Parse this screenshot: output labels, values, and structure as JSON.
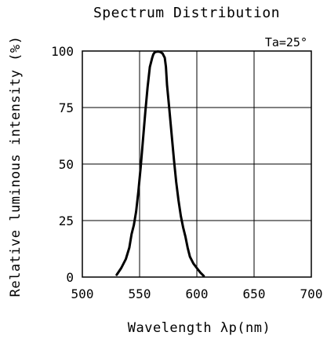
{
  "chart_data": {
    "type": "line",
    "title": "Spectrum Distribution",
    "annotation": "Ta=25°",
    "xlabel": "Wavelength λp(nm)",
    "ylabel": "Relative luminous intensity (%)",
    "xlim": [
      500,
      700
    ],
    "ylim": [
      0,
      100
    ],
    "x_ticks": [
      "500",
      "550",
      "600",
      "650",
      "700"
    ],
    "y_ticks": [
      "0",
      "25",
      "50",
      "75",
      "100"
    ],
    "grid": true,
    "series": [
      {
        "x": [
          530,
          534,
          538,
          541,
          543,
          545,
          547,
          549,
          551,
          553,
          555,
          557,
          559,
          561,
          562,
          563,
          564,
          566,
          568,
          570,
          572,
          573,
          574,
          576,
          578,
          580,
          582,
          584,
          586,
          588,
          590,
          592,
          594,
          597,
          600,
          603,
          606
        ],
        "y": [
          1,
          4,
          8,
          13,
          19,
          23,
          29,
          38,
          49,
          61,
          73,
          84,
          93,
          97,
          98.5,
          99.3,
          99.6,
          99.8,
          99.6,
          99,
          97,
          93,
          85,
          74,
          63,
          52,
          42,
          34,
          27,
          22,
          18,
          13,
          9,
          6,
          4,
          2,
          0.5
        ]
      }
    ]
  }
}
